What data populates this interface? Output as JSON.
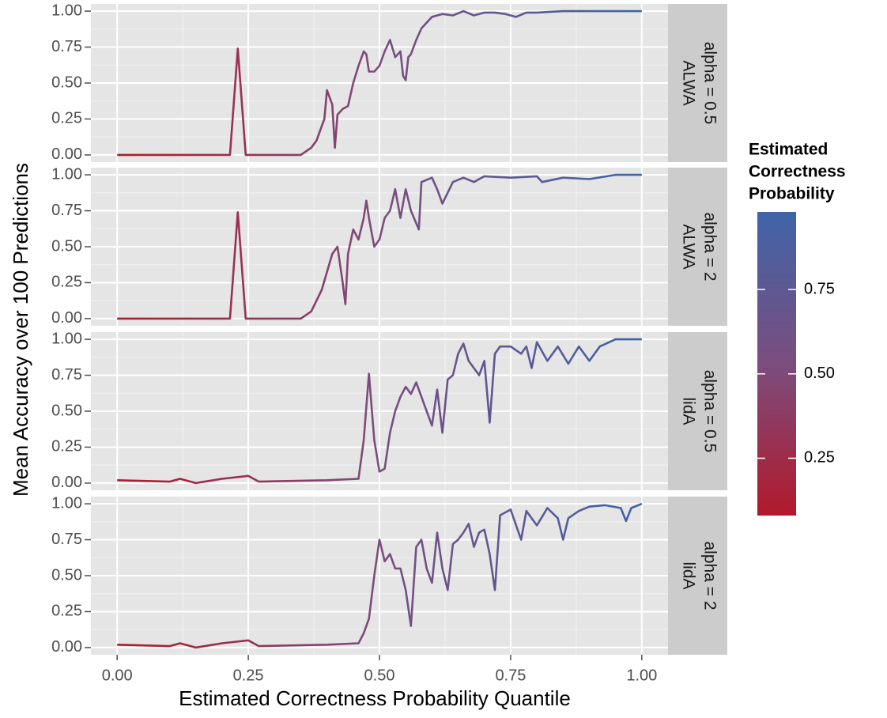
{
  "chart_data": {
    "type": "line",
    "xlabel": "Estimated Correctness Probability Quantile",
    "ylabel": "Mean Accuracy over 100 Predictions",
    "xlim": [
      -0.05,
      1.05
    ],
    "xticks": [
      {
        "value": 0,
        "label": "0.00"
      },
      {
        "value": 0.25,
        "label": "0.25"
      },
      {
        "value": 0.5,
        "label": "0.50"
      },
      {
        "value": 0.75,
        "label": "0.75"
      },
      {
        "value": 1,
        "label": "1.00"
      }
    ],
    "ylim": [
      -0.05,
      1.05
    ],
    "yticks": [
      {
        "value": 0,
        "label": "0.00"
      },
      {
        "value": 0.25,
        "label": "0.25"
      },
      {
        "value": 0.5,
        "label": "0.50"
      },
      {
        "value": 0.75,
        "label": "0.75"
      },
      {
        "value": 1,
        "label": "1.00"
      }
    ],
    "grid": true,
    "colorbar": {
      "title": [
        "Estimated",
        "Correctness",
        "Probability"
      ],
      "lim": [
        0.08,
        0.98
      ],
      "ticks": [
        {
          "value": 0.25,
          "label": "0.25"
        },
        {
          "value": 0.5,
          "label": "0.50"
        },
        {
          "value": 0.75,
          "label": "0.75"
        }
      ],
      "colors": [
        "#b2192b",
        "#7b4d7e",
        "#3f64a8"
      ]
    },
    "panels": [
      {
        "strip": [
          "alpha = 0.5",
          "ALWA"
        ],
        "x": [
          0,
          0.215,
          0.23,
          0.245,
          0.35,
          0.37,
          0.38,
          0.39,
          0.395,
          0.4,
          0.41,
          0.415,
          0.42,
          0.43,
          0.44,
          0.45,
          0.46,
          0.47,
          0.475,
          0.48,
          0.49,
          0.5,
          0.51,
          0.52,
          0.53,
          0.54,
          0.545,
          0.55,
          0.555,
          0.56,
          0.57,
          0.58,
          0.59,
          0.6,
          0.62,
          0.64,
          0.66,
          0.68,
          0.7,
          0.72,
          0.74,
          0.76,
          0.78,
          0.8,
          0.85,
          0.9,
          0.95,
          1
        ],
        "values": [
          0,
          0,
          0.74,
          0,
          0,
          0.05,
          0.1,
          0.2,
          0.25,
          0.45,
          0.35,
          0.05,
          0.28,
          0.32,
          0.34,
          0.5,
          0.62,
          0.72,
          0.7,
          0.58,
          0.58,
          0.62,
          0.72,
          0.8,
          0.68,
          0.72,
          0.55,
          0.52,
          0.68,
          0.7,
          0.8,
          0.88,
          0.92,
          0.96,
          0.98,
          0.97,
          1,
          0.97,
          0.99,
          0.99,
          0.98,
          0.96,
          0.99,
          0.99,
          1,
          1,
          1,
          1
        ]
      },
      {
        "strip": [
          "alpha = 2",
          "ALWA"
        ],
        "x": [
          0,
          0.215,
          0.23,
          0.245,
          0.35,
          0.37,
          0.39,
          0.41,
          0.42,
          0.43,
          0.435,
          0.44,
          0.45,
          0.46,
          0.47,
          0.475,
          0.48,
          0.49,
          0.5,
          0.51,
          0.52,
          0.53,
          0.535,
          0.54,
          0.55,
          0.56,
          0.575,
          0.58,
          0.6,
          0.61,
          0.62,
          0.64,
          0.66,
          0.68,
          0.7,
          0.75,
          0.8,
          0.81,
          0.85,
          0.9,
          0.95,
          1
        ],
        "values": [
          0,
          0,
          0.74,
          0,
          0,
          0.05,
          0.2,
          0.45,
          0.5,
          0.25,
          0.1,
          0.45,
          0.62,
          0.55,
          0.7,
          0.82,
          0.7,
          0.5,
          0.55,
          0.7,
          0.75,
          0.9,
          0.8,
          0.7,
          0.9,
          0.75,
          0.62,
          0.95,
          0.98,
          0.9,
          0.8,
          0.95,
          0.98,
          0.95,
          0.99,
          0.98,
          0.99,
          0.95,
          0.98,
          0.97,
          1,
          1
        ]
      },
      {
        "strip": [
          "alpha = 0.5",
          "lidA"
        ],
        "x": [
          0,
          0.1,
          0.12,
          0.15,
          0.2,
          0.25,
          0.27,
          0.4,
          0.46,
          0.47,
          0.48,
          0.49,
          0.5,
          0.51,
          0.52,
          0.53,
          0.54,
          0.55,
          0.56,
          0.57,
          0.58,
          0.59,
          0.6,
          0.61,
          0.62,
          0.63,
          0.64,
          0.65,
          0.66,
          0.67,
          0.68,
          0.69,
          0.7,
          0.71,
          0.72,
          0.73,
          0.75,
          0.77,
          0.78,
          0.79,
          0.8,
          0.82,
          0.84,
          0.86,
          0.88,
          0.9,
          0.92,
          0.95,
          1
        ],
        "values": [
          0.02,
          0.01,
          0.03,
          0,
          0.03,
          0.05,
          0.01,
          0.02,
          0.03,
          0.3,
          0.76,
          0.3,
          0.08,
          0.1,
          0.35,
          0.5,
          0.6,
          0.67,
          0.62,
          0.7,
          0.6,
          0.5,
          0.4,
          0.65,
          0.35,
          0.72,
          0.75,
          0.9,
          0.97,
          0.85,
          0.8,
          0.75,
          0.85,
          0.42,
          0.9,
          0.95,
          0.95,
          0.9,
          0.95,
          0.8,
          0.98,
          0.85,
          0.95,
          0.83,
          0.95,
          0.85,
          0.95,
          1,
          1
        ]
      },
      {
        "strip": [
          "alpha = 2",
          "lidA"
        ],
        "x": [
          0,
          0.1,
          0.12,
          0.15,
          0.2,
          0.25,
          0.27,
          0.4,
          0.46,
          0.47,
          0.48,
          0.49,
          0.5,
          0.51,
          0.52,
          0.53,
          0.54,
          0.55,
          0.56,
          0.57,
          0.58,
          0.59,
          0.6,
          0.61,
          0.62,
          0.63,
          0.64,
          0.65,
          0.66,
          0.67,
          0.68,
          0.69,
          0.7,
          0.71,
          0.72,
          0.73,
          0.75,
          0.77,
          0.78,
          0.8,
          0.82,
          0.84,
          0.85,
          0.86,
          0.88,
          0.9,
          0.93,
          0.96,
          0.97,
          0.98,
          1
        ],
        "values": [
          0.02,
          0.01,
          0.03,
          0,
          0.03,
          0.05,
          0.01,
          0.02,
          0.03,
          0.1,
          0.2,
          0.5,
          0.75,
          0.6,
          0.65,
          0.55,
          0.55,
          0.4,
          0.15,
          0.7,
          0.75,
          0.55,
          0.45,
          0.8,
          0.55,
          0.4,
          0.72,
          0.75,
          0.8,
          0.86,
          0.7,
          0.8,
          0.82,
          0.65,
          0.4,
          0.92,
          0.96,
          0.75,
          0.95,
          0.85,
          0.97,
          0.9,
          0.75,
          0.9,
          0.95,
          0.98,
          0.99,
          0.97,
          0.88,
          0.97,
          1
        ]
      }
    ]
  }
}
